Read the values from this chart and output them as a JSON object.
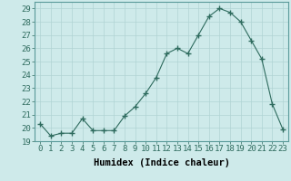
{
  "x": [
    0,
    1,
    2,
    3,
    4,
    5,
    6,
    7,
    8,
    9,
    10,
    11,
    12,
    13,
    14,
    15,
    16,
    17,
    18,
    19,
    20,
    21,
    22,
    23
  ],
  "y": [
    20.3,
    19.4,
    19.6,
    19.6,
    20.7,
    19.8,
    19.8,
    19.8,
    20.9,
    21.6,
    22.6,
    23.8,
    25.6,
    26.0,
    25.6,
    27.0,
    28.4,
    29.0,
    28.7,
    28.0,
    26.6,
    25.2,
    21.8,
    19.9
  ],
  "xlabel": "Humidex (Indice chaleur)",
  "xlim": [
    -0.5,
    23.5
  ],
  "ylim": [
    19,
    29.5
  ],
  "yticks": [
    19,
    20,
    21,
    22,
    23,
    24,
    25,
    26,
    27,
    28,
    29
  ],
  "xticks": [
    0,
    1,
    2,
    3,
    4,
    5,
    6,
    7,
    8,
    9,
    10,
    11,
    12,
    13,
    14,
    15,
    16,
    17,
    18,
    19,
    20,
    21,
    22,
    23
  ],
  "line_color": "#2e6b5e",
  "marker": "+",
  "marker_size": 4,
  "bg_color": "#ceeaea",
  "grid_color": "#b0d4d4",
  "xlabel_fontsize": 7.5,
  "tick_fontsize": 6.5
}
